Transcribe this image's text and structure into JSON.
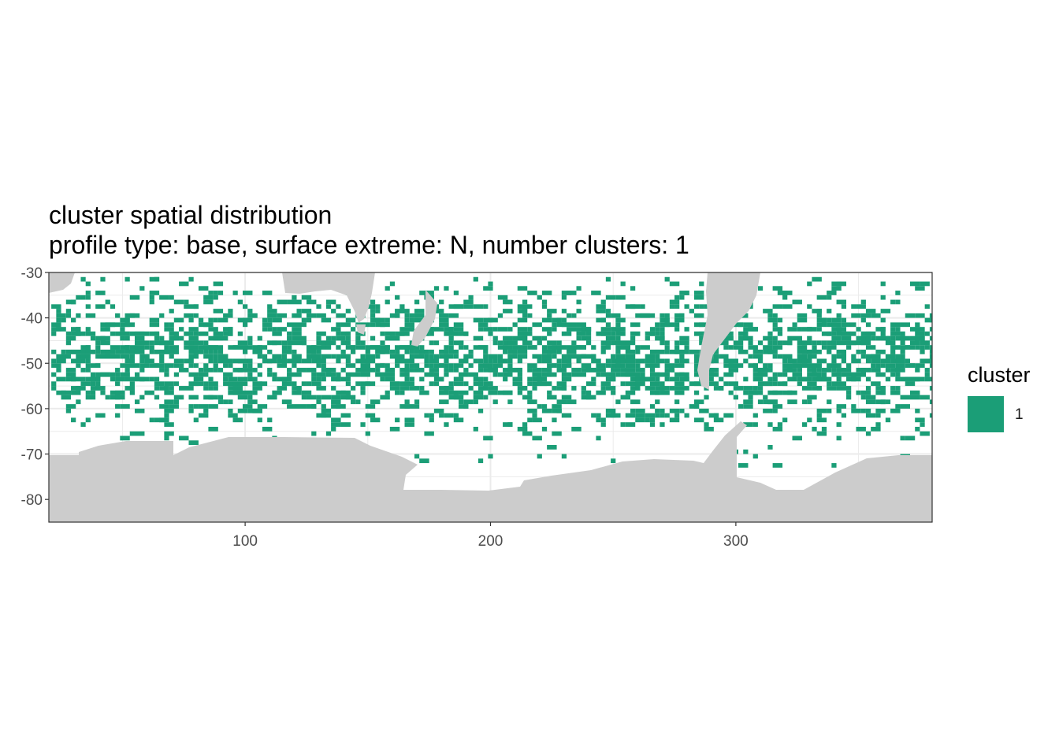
{
  "title": {
    "line1": "cluster spatial distribution",
    "line2": "profile type: base, surface extreme: N, number clusters: 1"
  },
  "chart_data": {
    "type": "heatmap",
    "x_ticks": [
      100,
      200,
      300
    ],
    "y_ticks": [
      -30,
      -40,
      -50,
      -60,
      -70,
      -80
    ],
    "x_tick_labels": [
      "100",
      "200",
      "300"
    ],
    "y_tick_labels": [
      "-30",
      "-40",
      "-50",
      "-60",
      "-70",
      "-80"
    ],
    "xlim": [
      20,
      380
    ],
    "ylim": [
      -85,
      -30
    ],
    "grid": true,
    "land_color": "#cccccc",
    "cluster_color": "#1b9e77",
    "legend": {
      "title": "cluster",
      "entries": [
        {
          "label": "1",
          "color": "#1b9e77"
        }
      ],
      "placement": "right"
    }
  }
}
